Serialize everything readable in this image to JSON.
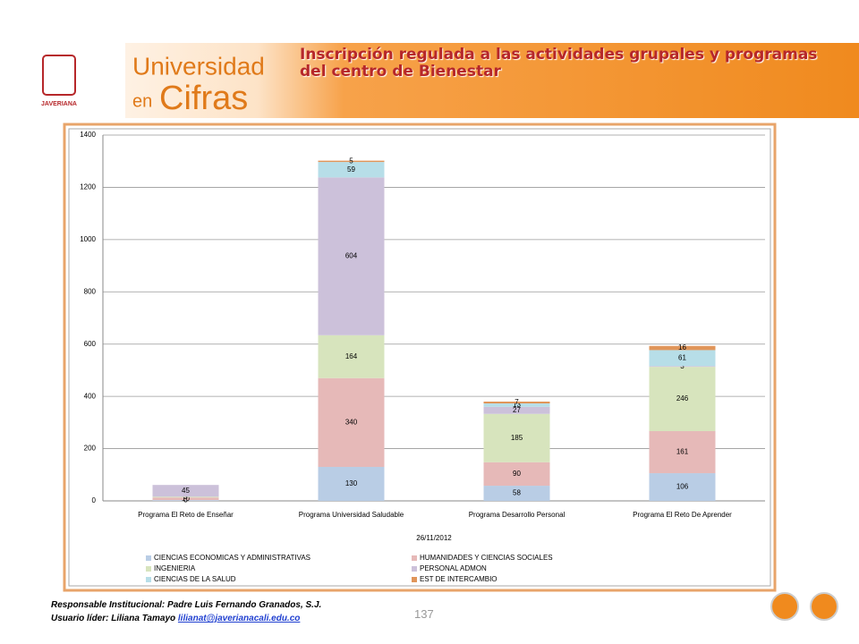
{
  "header": {
    "brand_line1": "Universidad",
    "brand_line2a": "en",
    "brand_line2b": "Cifras",
    "logo_text": "JAVERIANA",
    "title": "Inscripción regulada a las actividades  grupales y programas del centro de Bienestar"
  },
  "chart_data": {
    "type": "stacked_bar",
    "xlabel": "26/11/2012",
    "categories": [
      "Programa El Reto de Enseñar",
      "Programa Universidad Saludable",
      "Programa Desarrollo Personal",
      "Programa El Reto De Aprender"
    ],
    "series": [
      {
        "name": "CIENCIAS ECONOMICAS Y ADMINISTRATIVAS",
        "color": "#b9cde5",
        "values": [
          3,
          130,
          58,
          106
        ]
      },
      {
        "name": "HUMANIDADES Y CIENCIAS SOCIALES",
        "color": "#e6b9b8",
        "values": [
          10,
          340,
          90,
          161
        ]
      },
      {
        "name": "INGENIERIA",
        "color": "#d7e4bd",
        "values": [
          3,
          164,
          185,
          246
        ]
      },
      {
        "name": "PERSONAL ADMON",
        "color": "#ccc1da",
        "values": [
          45,
          604,
          27,
          3
        ]
      },
      {
        "name": "CIENCIAS DE LA SALUD",
        "color": "#b7dee8",
        "values": [
          0,
          59,
          13,
          61
        ]
      },
      {
        "name": "EST DE INTERCAMBIO",
        "color": "#e0955a",
        "values": [
          0,
          5,
          7,
          16
        ]
      }
    ],
    "ylim": [
      0,
      1400
    ],
    "yticks": [
      0,
      200,
      400,
      600,
      800,
      1000,
      1200,
      1400
    ],
    "grid": true
  },
  "footer": {
    "responsable": "Responsable Institucional: Padre Luis Fernando Granados, S.J.",
    "usuario": "Usuario líder: Liliana Tamayo",
    "email": "lilianat@javerianacali.edu.co",
    "page": "137"
  }
}
